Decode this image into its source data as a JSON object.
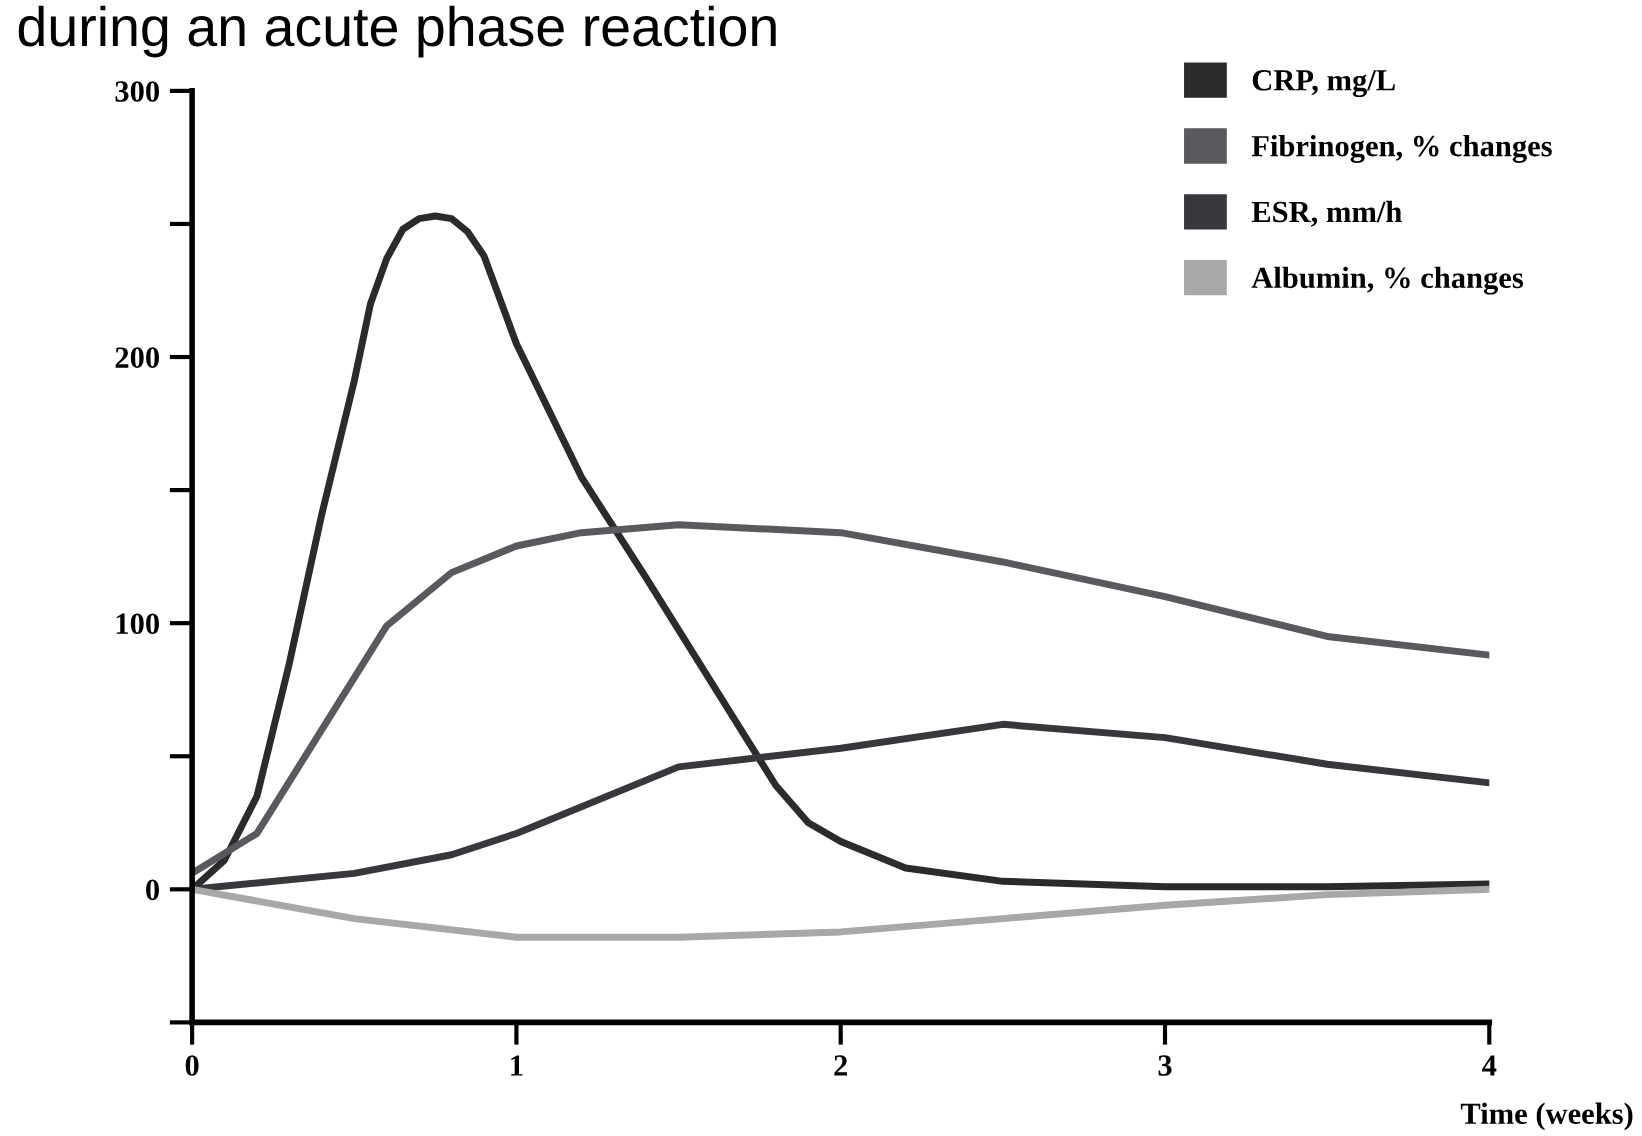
{
  "chart_data": {
    "type": "line",
    "title": "during an acute phase reaction",
    "xlabel": "Time (weeks)",
    "xlim": [
      0,
      4
    ],
    "xticks": [
      0,
      1,
      2,
      3,
      4
    ],
    "ylim": [
      -50,
      300
    ],
    "yticks": [
      {
        "value": -50,
        "label": null
      },
      0,
      {
        "value": 50,
        "label": null
      },
      100,
      {
        "value": 150,
        "label": null
      },
      200,
      {
        "value": 250,
        "label": null
      },
      300
    ],
    "grid": false,
    "legend": "top right",
    "marker": "none",
    "line_style": "solid",
    "series": [
      {
        "name": "CRP, mg/L",
        "color": "#2b2b2e",
        "x": [
          0,
          0.1,
          0.2,
          0.3,
          0.4,
          0.5,
          0.55,
          0.6,
          0.65,
          0.7,
          0.75,
          0.8,
          0.85,
          0.9,
          1.0,
          1.2,
          1.4,
          1.6,
          1.8,
          1.9,
          2.0,
          2.2,
          2.5,
          3.0,
          3.5,
          4.0
        ],
        "values": [
          0,
          11,
          35,
          85,
          141,
          191,
          220,
          237,
          248,
          252,
          253,
          252,
          247,
          238,
          205,
          155,
          117,
          78,
          39,
          25,
          18,
          8,
          3,
          1,
          1,
          2
        ]
      },
      {
        "name": "Fibrinogen, % changes",
        "color": "#5a5a5e",
        "x": [
          0,
          0.2,
          0.4,
          0.6,
          0.8,
          1.0,
          1.2,
          1.5,
          2.0,
          2.5,
          3.0,
          3.5,
          4.0
        ],
        "values": [
          6,
          21,
          60,
          99,
          119,
          129,
          134,
          137,
          134,
          123,
          110,
          95,
          88
        ]
      },
      {
        "name": "ESR, mm/h",
        "color": "#38373c",
        "x": [
          0,
          0.5,
          0.8,
          1.0,
          1.5,
          2.0,
          2.5,
          3.0,
          3.5,
          4.0
        ],
        "values": [
          0,
          6,
          13,
          21,
          46,
          53,
          62,
          57,
          47,
          40
        ]
      },
      {
        "name": "Albumin, % changes",
        "color": "#a8a8a8",
        "x": [
          0,
          0.5,
          1.0,
          1.5,
          2.0,
          2.5,
          3.0,
          3.5,
          4.0
        ],
        "values": [
          0,
          -11,
          -18,
          -18,
          -16,
          -11,
          -6,
          -2,
          0
        ]
      }
    ]
  }
}
